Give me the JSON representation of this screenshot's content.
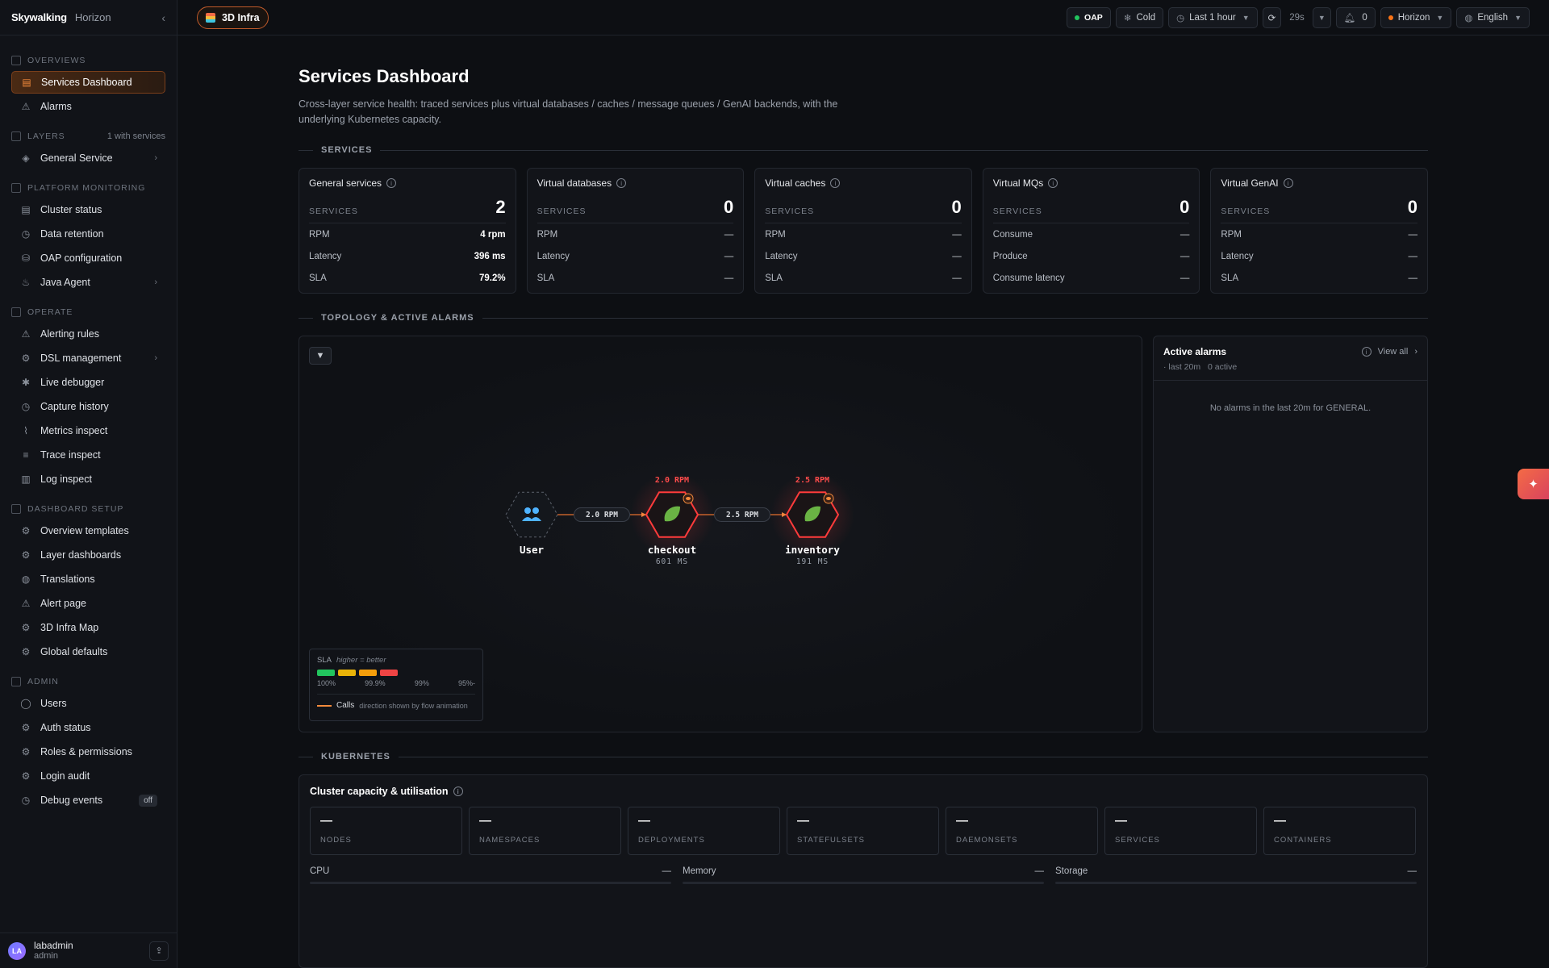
{
  "brand": {
    "logo": "Skywalking",
    "product": "Horizon",
    "collapse_icon": "chevron-left-icon"
  },
  "sidebar": {
    "sections": [
      {
        "id": "overviews",
        "label": "OVERVIEWS",
        "items": [
          {
            "label": "Services Dashboard",
            "icon": "dashboard-icon",
            "active": true
          },
          {
            "label": "Alarms",
            "icon": "warning-icon"
          }
        ]
      },
      {
        "id": "layers",
        "label": "LAYERS",
        "extra": "1 with services",
        "items": [
          {
            "label": "General Service",
            "icon": "layer-icon",
            "chevron": true
          }
        ]
      },
      {
        "id": "platform",
        "label": "PLATFORM MONITORING",
        "items": [
          {
            "label": "Cluster status",
            "icon": "server-icon"
          },
          {
            "label": "Data retention",
            "icon": "clock-icon"
          },
          {
            "label": "OAP configuration",
            "icon": "database-icon"
          },
          {
            "label": "Java Agent",
            "icon": "java-icon",
            "chevron": true
          }
        ]
      },
      {
        "id": "operate",
        "label": "OPERATE",
        "items": [
          {
            "label": "Alerting rules",
            "icon": "warning-icon"
          },
          {
            "label": "DSL management",
            "icon": "gear-icon",
            "chevron": true
          },
          {
            "label": "Live debugger",
            "icon": "bug-icon"
          },
          {
            "label": "Capture history",
            "icon": "clock-icon"
          },
          {
            "label": "Metrics inspect",
            "icon": "chart-icon"
          },
          {
            "label": "Trace inspect",
            "icon": "trace-icon"
          },
          {
            "label": "Log inspect",
            "icon": "log-icon"
          }
        ]
      },
      {
        "id": "dashboard-setup",
        "label": "DASHBOARD SETUP",
        "items": [
          {
            "label": "Overview templates",
            "icon": "gear-icon"
          },
          {
            "label": "Layer dashboards",
            "icon": "gear-icon"
          },
          {
            "label": "Translations",
            "icon": "globe-icon"
          },
          {
            "label": "Alert page",
            "icon": "warning-icon"
          },
          {
            "label": "3D Infra Map",
            "icon": "gear-icon"
          },
          {
            "label": "Global defaults",
            "icon": "gear-icon"
          }
        ]
      },
      {
        "id": "admin",
        "label": "ADMIN",
        "items": [
          {
            "label": "Users",
            "icon": "user-icon"
          },
          {
            "label": "Auth status",
            "icon": "gear-icon"
          },
          {
            "label": "Roles & permissions",
            "icon": "gear-icon"
          },
          {
            "label": "Login audit",
            "icon": "gear-icon"
          },
          {
            "label": "Debug events",
            "icon": "clock-icon",
            "badge": "off"
          }
        ]
      }
    ]
  },
  "user": {
    "initials": "LA",
    "name": "labadmin",
    "role": "admin"
  },
  "topbar": {
    "tag": "3D Infra",
    "oap": "OAP",
    "cold": "Cold",
    "time_range": "Last 1 hour",
    "refresh_interval": "29s",
    "notifications": "0",
    "theme": "Horizon",
    "language": "English",
    "colors": {
      "oap_dot": "#22c55e",
      "theme_dot": "#f97316"
    }
  },
  "page": {
    "title": "Services Dashboard",
    "description": "Cross-layer service health: traced services plus virtual databases / caches / message queues / GenAI backends, with the underlying Kubernetes capacity."
  },
  "sections": {
    "services": "SERVICES",
    "topology": "TOPOLOGY & ACTIVE ALARMS",
    "kubernetes": "KUBERNETES"
  },
  "cards": [
    {
      "title": "General services",
      "services_label": "SERVICES",
      "count": "2",
      "rows": [
        {
          "k": "RPM",
          "v": "4 rpm"
        },
        {
          "k": "Latency",
          "v": "396 ms"
        },
        {
          "k": "SLA",
          "v": "79.2%"
        }
      ]
    },
    {
      "title": "Virtual databases",
      "services_label": "SERVICES",
      "count": "0",
      "rows": [
        {
          "k": "RPM",
          "v": "—"
        },
        {
          "k": "Latency",
          "v": "—"
        },
        {
          "k": "SLA",
          "v": "—"
        }
      ]
    },
    {
      "title": "Virtual caches",
      "services_label": "SERVICES",
      "count": "0",
      "rows": [
        {
          "k": "RPM",
          "v": "—"
        },
        {
          "k": "Latency",
          "v": "—"
        },
        {
          "k": "SLA",
          "v": "—"
        }
      ]
    },
    {
      "title": "Virtual MQs",
      "services_label": "SERVICES",
      "count": "0",
      "rows": [
        {
          "k": "Consume",
          "v": "—"
        },
        {
          "k": "Produce",
          "v": "—"
        },
        {
          "k": "Consume latency",
          "v": "—"
        }
      ]
    },
    {
      "title": "Virtual GenAI",
      "services_label": "SERVICES",
      "count": "0",
      "rows": [
        {
          "k": "RPM",
          "v": "—"
        },
        {
          "k": "Latency",
          "v": "—"
        },
        {
          "k": "SLA",
          "v": "—"
        }
      ]
    }
  ],
  "topology": {
    "nodes": [
      {
        "name": "User",
        "kind": "user",
        "icon": "users-icon"
      },
      {
        "name": "checkout",
        "kind": "service",
        "icon": "spring-leaf-icon",
        "rpm": "2.0 RPM",
        "latency": "601 MS"
      },
      {
        "name": "inventory",
        "kind": "service",
        "icon": "spring-leaf-icon",
        "rpm": "2.5 RPM",
        "latency": "191 MS"
      }
    ],
    "edges": [
      {
        "from": "User",
        "to": "checkout",
        "label": "2.0 RPM"
      },
      {
        "from": "checkout",
        "to": "inventory",
        "label": "2.5 RPM"
      }
    ],
    "legend": {
      "title": "SLA",
      "hint": "higher = better",
      "colors": [
        "#22c55e",
        "#eab308",
        "#f59e0b",
        "#ef4444"
      ],
      "stops": [
        "100%",
        "99.9%",
        "99%",
        "95%-"
      ],
      "calls": "Calls",
      "calls_hint": "direction shown by flow animation"
    }
  },
  "alarms": {
    "title": "Active alarms",
    "view_all": "View all",
    "window": "· last 20m",
    "active": "0 active",
    "empty": "No alarms in the last 20m for GENERAL."
  },
  "k8s": {
    "title": "Cluster capacity & utilisation",
    "tiles": [
      {
        "k": "NODES",
        "v": "—"
      },
      {
        "k": "NAMESPACES",
        "v": "—"
      },
      {
        "k": "DEPLOYMENTS",
        "v": "—"
      },
      {
        "k": "STATEFULSETS",
        "v": "—"
      },
      {
        "k": "DAEMONSETS",
        "v": "—"
      },
      {
        "k": "SERVICES",
        "v": "—"
      },
      {
        "k": "CONTAINERS",
        "v": "—"
      }
    ],
    "bars": [
      {
        "k": "CPU",
        "v": "—"
      },
      {
        "k": "Memory",
        "v": "—"
      },
      {
        "k": "Storage",
        "v": "—"
      }
    ]
  }
}
